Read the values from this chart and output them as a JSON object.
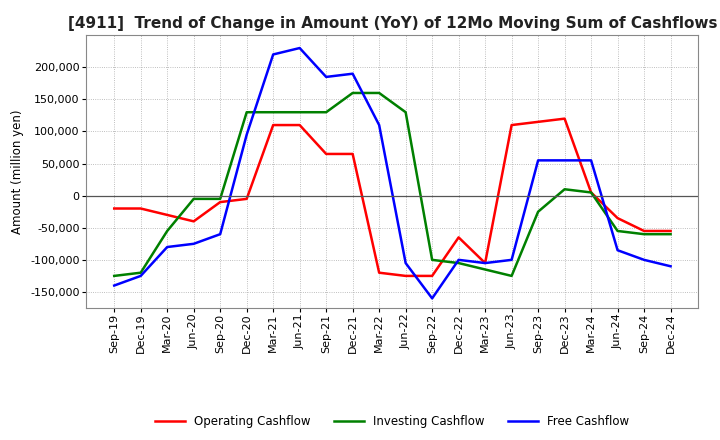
{
  "title": "[4911]  Trend of Change in Amount (YoY) of 12Mo Moving Sum of Cashflows",
  "ylabel": "Amount (million yen)",
  "x_labels": [
    "Sep-19",
    "Dec-19",
    "Mar-20",
    "Jun-20",
    "Sep-20",
    "Dec-20",
    "Mar-21",
    "Jun-21",
    "Sep-21",
    "Dec-21",
    "Mar-22",
    "Jun-22",
    "Sep-22",
    "Dec-22",
    "Mar-23",
    "Jun-23",
    "Sep-23",
    "Dec-23",
    "Mar-24",
    "Jun-24",
    "Sep-24",
    "Dec-24"
  ],
  "operating": [
    -20000,
    -20000,
    -30000,
    -40000,
    -10000,
    -5000,
    110000,
    110000,
    65000,
    65000,
    -120000,
    -125000,
    -125000,
    -65000,
    -105000,
    110000,
    115000,
    120000,
    5000,
    -35000,
    -55000,
    -55000
  ],
  "investing": [
    -125000,
    -120000,
    -55000,
    -5000,
    -5000,
    130000,
    130000,
    130000,
    130000,
    160000,
    160000,
    130000,
    -100000,
    -105000,
    -115000,
    -125000,
    -25000,
    10000,
    5000,
    -55000,
    -60000,
    -60000
  ],
  "free": [
    -140000,
    -125000,
    -80000,
    -75000,
    -60000,
    95000,
    220000,
    230000,
    185000,
    190000,
    110000,
    -105000,
    -160000,
    -100000,
    -105000,
    -100000,
    55000,
    55000,
    55000,
    -85000,
    -100000,
    -110000
  ],
  "ylim": [
    -175000,
    250000
  ],
  "yticks": [
    -150000,
    -100000,
    -50000,
    0,
    50000,
    100000,
    150000,
    200000
  ],
  "operating_color": "#ff0000",
  "investing_color": "#008000",
  "free_color": "#0000ff",
  "background_color": "#ffffff",
  "grid_color": "#aaaaaa",
  "title_fontsize": 11,
  "label_fontsize": 8.5,
  "tick_fontsize": 8
}
